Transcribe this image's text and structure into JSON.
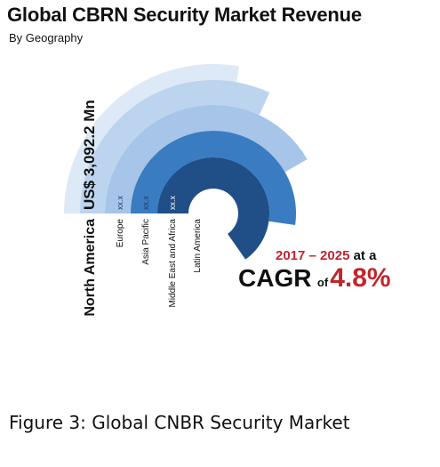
{
  "header": {
    "title": "Global CBRN Security Market Revenue",
    "subtitle": "By Geography"
  },
  "chart_data": {
    "type": "radial-bar",
    "categories": [
      "North America",
      "Europe",
      "Asia Pacific",
      "Middle East and Africa",
      "Latin America"
    ],
    "value_labels": [
      "US$ 3,092.2 Mn",
      "xx.x",
      "xx.x",
      "xx.x",
      "xx.x"
    ],
    "colors": [
      "#dde9f6",
      "#bcd4ee",
      "#a6c5e8",
      "#3a7cc2",
      "#1f4f86"
    ],
    "value_unit": "Mn"
  },
  "cagr": {
    "years": "2017 – 2025",
    "at": " at a",
    "label": "CAGR",
    "of": "of",
    "value": "4.8%"
  },
  "caption": "Figure 3: Global CNBR Security Market"
}
